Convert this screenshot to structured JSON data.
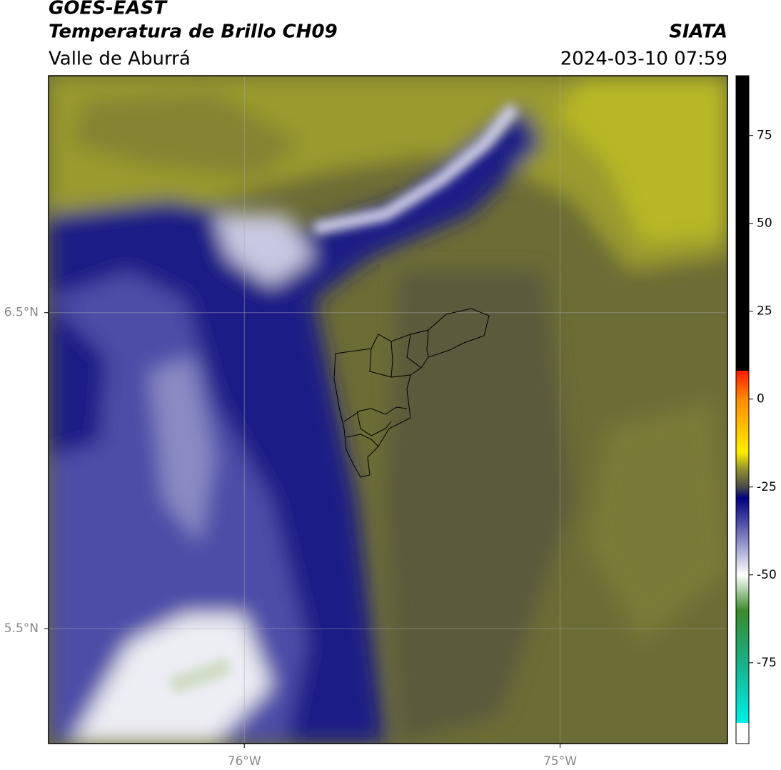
{
  "header": {
    "title": "GOES-EAST",
    "subtitle": "Temperatura de Brillo CH09",
    "region": "Valle de Aburrá",
    "source": "SIATA",
    "datetime": "2024-03-10 07:59"
  },
  "map": {
    "xlim": [
      -76.62,
      -74.47
    ],
    "ylim": [
      5.136,
      7.25
    ],
    "xticks": [
      {
        "value": -76,
        "label": "76°W"
      },
      {
        "value": -75,
        "label": "75°W"
      }
    ],
    "yticks": [
      {
        "value": 6.5,
        "label": "6.5°N"
      },
      {
        "value": 5.5,
        "label": "5.5°N"
      }
    ],
    "grid": true
  },
  "colorbar": {
    "lim": [
      -98,
      92
    ],
    "ticks": [
      75,
      50,
      25,
      0,
      -25,
      -50,
      -75
    ]
  }
}
